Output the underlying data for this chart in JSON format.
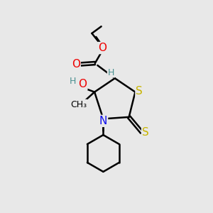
{
  "bg_color": "#e8e8e8",
  "atom_colors": {
    "S": "#c8b400",
    "N": "#1010ee",
    "O": "#ee0000",
    "C": "#000000",
    "H": "#4a9090"
  },
  "bond_color": "#000000",
  "bond_width": 1.8,
  "figsize": [
    3.0,
    3.0
  ],
  "dpi": 100
}
